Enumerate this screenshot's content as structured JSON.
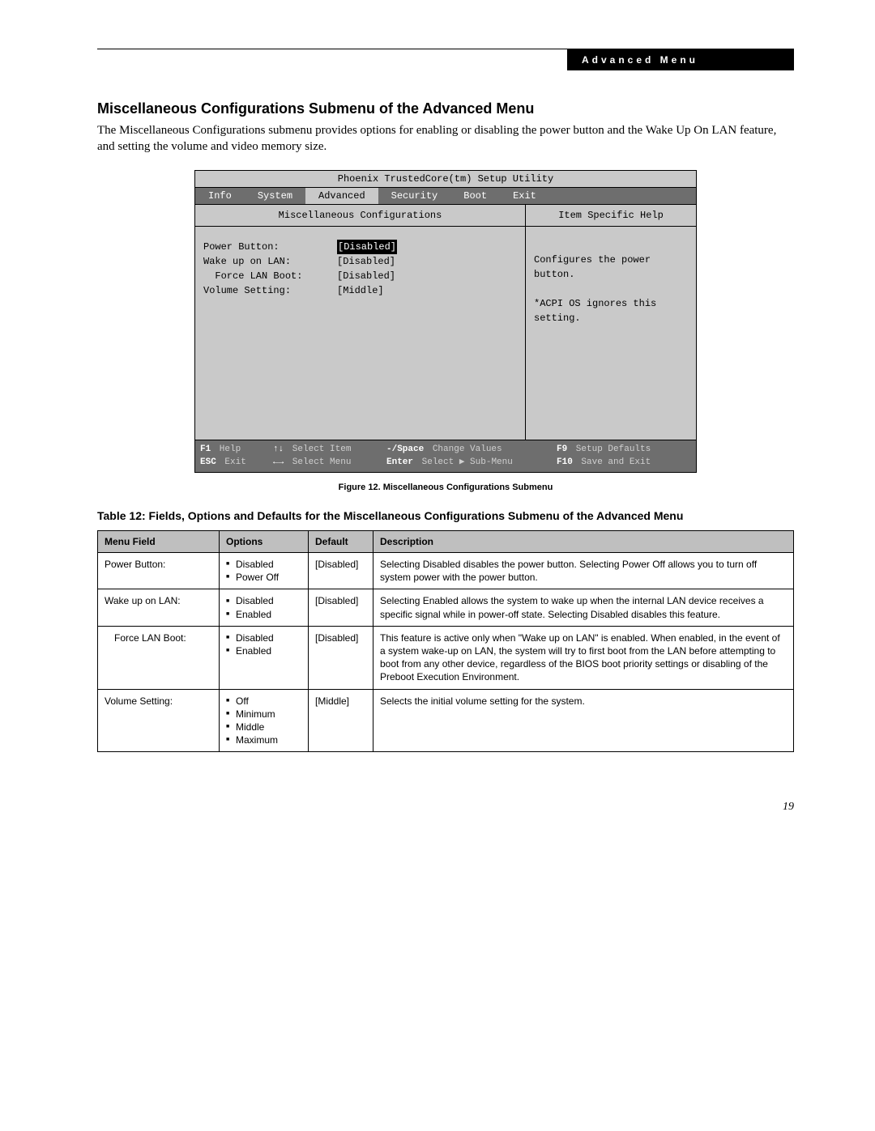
{
  "header": {
    "label": "Advanced Menu"
  },
  "section": {
    "title": "Miscellaneous Configurations Submenu of the Advanced Menu",
    "intro": "The Miscellaneous Configurations submenu provides options for enabling or disabling the power button and the Wake Up On LAN feature, and setting the volume and video memory size."
  },
  "bios": {
    "title": "Phoenix TrustedCore(tm) Setup Utility",
    "tabs": [
      "Info",
      "System",
      "Advanced",
      "Security",
      "Boot",
      "Exit"
    ],
    "active_tab": "Advanced",
    "submenu_title": "Miscellaneous Configurations",
    "help_title": "Item Specific Help",
    "rows": [
      {
        "label": "Power Button:",
        "value": "[Disabled]",
        "selected": true,
        "indent": 0
      },
      {
        "label": "Wake up on LAN:",
        "value": "[Disabled]",
        "selected": false,
        "indent": 0
      },
      {
        "label": "Force LAN Boot:",
        "value": "[Disabled]",
        "selected": false,
        "indent": 1
      },
      {
        "label": "Volume Setting:",
        "value": "[Middle]",
        "selected": false,
        "indent": 0
      }
    ],
    "help_text": [
      "Configures the power",
      "button.",
      "",
      "*ACPI OS ignores this",
      "setting."
    ],
    "footer": {
      "line1": [
        {
          "key": "F1",
          "label": "Help"
        },
        {
          "key": "↑↓",
          "label": "Select Item"
        },
        {
          "key": "-/Space",
          "label": "Change Values"
        },
        {
          "key": "F9",
          "label": "Setup Defaults"
        }
      ],
      "line2": [
        {
          "key": "ESC",
          "label": "Exit"
        },
        {
          "key": "←→",
          "label": "Select Menu"
        },
        {
          "key": "Enter",
          "label": "Select ▶ Sub-Menu"
        },
        {
          "key": "F10",
          "label": "Save and Exit"
        }
      ]
    }
  },
  "figure_caption": "Figure 12.  Miscellaneous Configurations Submenu",
  "table_title": "Table 12: Fields, Options and Defaults for the Miscellaneous Configurations Submenu of the Advanced Menu",
  "table": {
    "columns": [
      "Menu Field",
      "Options",
      "Default",
      "Description"
    ],
    "rows": [
      {
        "field": "Power Button:",
        "indent": false,
        "options": [
          "Disabled",
          "Power Off"
        ],
        "default": "[Disabled]",
        "description": "Selecting Disabled disables the power button. Selecting Power Off allows you to turn off system power with the power button."
      },
      {
        "field": "Wake up on LAN:",
        "indent": false,
        "options": [
          "Disabled",
          "Enabled"
        ],
        "default": "[Disabled]",
        "description": "Selecting Enabled allows the system to wake up when the internal LAN device receives a specific signal while in power-off state. Selecting Disabled disables this feature."
      },
      {
        "field": "Force LAN Boot:",
        "indent": true,
        "options": [
          "Disabled",
          "Enabled"
        ],
        "default": "[Disabled]",
        "description": "This feature is active only when \"Wake up on LAN\" is enabled. When enabled, in the event of a system wake-up on LAN, the system will try to first boot from the LAN before attempting to boot from any other device, regardless of the BIOS boot priority settings or disabling of the Preboot Execution Environment."
      },
      {
        "field": "Volume Setting:",
        "indent": false,
        "options": [
          "Off",
          "Minimum",
          "Middle",
          "Maximum"
        ],
        "default": "[Middle]",
        "description": "Selects the initial volume setting for the system."
      }
    ]
  },
  "page_number": "19"
}
